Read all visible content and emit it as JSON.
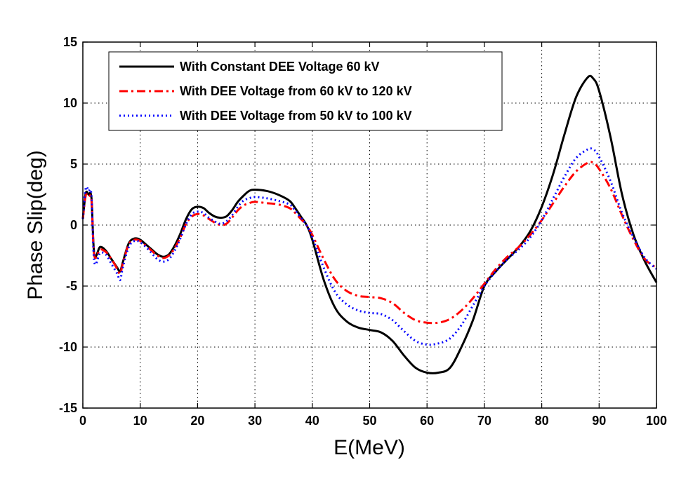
{
  "chart_data": {
    "type": "line",
    "title": "",
    "xlabel": "E(MeV)",
    "ylabel": "Phase Slip(deg)",
    "xlim": [
      0,
      100
    ],
    "ylim": [
      -15,
      15
    ],
    "xticks": [
      0,
      10,
      20,
      30,
      40,
      50,
      60,
      70,
      80,
      90,
      100
    ],
    "yticks": [
      -15,
      -10,
      -5,
      0,
      5,
      10,
      15
    ],
    "grid": true,
    "legend_position": "top-left",
    "series": [
      {
        "name": "With Constant DEE Voltage 60 kV",
        "color": "#000000",
        "style": "solid",
        "x": [
          0,
          0.5,
          1,
          1.5,
          2,
          3,
          4,
          5,
          6,
          6.5,
          7,
          8,
          9,
          10,
          11,
          12,
          13,
          14,
          15,
          16,
          17,
          18,
          19,
          20,
          21,
          22,
          23,
          24,
          25,
          26,
          27,
          28,
          29,
          30,
          32,
          34,
          36,
          37,
          38,
          39,
          40,
          42,
          44,
          46,
          48,
          50,
          52,
          54,
          56,
          58,
          60,
          62,
          64,
          66,
          68,
          70,
          72,
          74,
          76,
          78,
          80,
          82,
          84,
          86,
          88,
          89,
          90,
          92,
          94,
          96,
          98,
          100
        ],
        "y": [
          0.5,
          2.6,
          2.5,
          2.2,
          -2.4,
          -1.8,
          -2.1,
          -2.8,
          -3.5,
          -3.8,
          -3.0,
          -1.5,
          -1.1,
          -1.2,
          -1.6,
          -2.0,
          -2.4,
          -2.6,
          -2.4,
          -1.7,
          -0.7,
          0.5,
          1.3,
          1.5,
          1.4,
          1.0,
          0.7,
          0.6,
          0.7,
          1.2,
          1.9,
          2.4,
          2.8,
          2.9,
          2.8,
          2.5,
          2.0,
          1.4,
          0.7,
          0.0,
          -1.2,
          -4.5,
          -6.8,
          -7.9,
          -8.4,
          -8.6,
          -8.8,
          -9.5,
          -10.7,
          -11.7,
          -12.1,
          -12.1,
          -11.7,
          -10.0,
          -7.8,
          -5.0,
          -3.8,
          -2.8,
          -1.8,
          -0.5,
          1.5,
          4.2,
          7.5,
          10.5,
          12.1,
          12.0,
          11.0,
          7.2,
          2.5,
          -0.8,
          -3.0,
          -4.7
        ]
      },
      {
        "name": "With DEE Voltage from 60 kV to 120 kV",
        "color": "#ff0000",
        "style": "dashdot",
        "x": [
          0,
          0.5,
          1,
          1.5,
          2,
          3,
          4,
          5,
          6,
          6.5,
          7,
          8,
          9,
          10,
          11,
          12,
          13,
          14,
          15,
          16,
          17,
          18,
          19,
          20,
          21,
          22,
          23,
          24,
          25,
          26,
          27,
          28,
          29,
          30,
          32,
          34,
          36,
          37,
          38,
          39,
          40,
          42,
          44,
          46,
          48,
          50,
          52,
          54,
          56,
          58,
          60,
          62,
          64,
          66,
          68,
          70,
          72,
          74,
          76,
          78,
          80,
          82,
          84,
          86,
          88,
          89,
          90,
          92,
          94,
          96,
          98,
          100
        ],
        "y": [
          0.5,
          2.4,
          2.3,
          2.0,
          -2.5,
          -2.0,
          -2.2,
          -2.8,
          -3.6,
          -4.0,
          -3.1,
          -1.6,
          -1.2,
          -1.3,
          -1.7,
          -2.1,
          -2.5,
          -2.7,
          -2.5,
          -1.9,
          -1.0,
          0.1,
          0.7,
          0.9,
          0.8,
          0.5,
          0.2,
          0.0,
          0.1,
          0.6,
          1.2,
          1.6,
          1.8,
          1.9,
          1.8,
          1.7,
          1.4,
          1.0,
          0.5,
          0.0,
          -0.8,
          -2.8,
          -4.5,
          -5.4,
          -5.8,
          -5.9,
          -6.0,
          -6.4,
          -7.2,
          -7.8,
          -8.0,
          -8.0,
          -7.7,
          -7.0,
          -6.0,
          -4.8,
          -3.6,
          -2.6,
          -1.8,
          -0.8,
          0.4,
          1.8,
          3.2,
          4.4,
          5.1,
          5.1,
          4.6,
          3.0,
          0.8,
          -1.2,
          -2.8,
          -3.5
        ]
      },
      {
        "name": "With DEE Voltage from 50 kV to 100 kV",
        "color": "#0000ff",
        "style": "dotted",
        "x": [
          0,
          0.5,
          1,
          1.5,
          2,
          3,
          4,
          5,
          6,
          6.5,
          7,
          8,
          9,
          10,
          11,
          12,
          13,
          14,
          15,
          16,
          17,
          18,
          19,
          20,
          21,
          22,
          23,
          24,
          25,
          26,
          27,
          28,
          29,
          30,
          32,
          34,
          36,
          37,
          38,
          39,
          40,
          42,
          44,
          46,
          48,
          50,
          52,
          54,
          56,
          58,
          60,
          62,
          64,
          66,
          68,
          70,
          72,
          74,
          76,
          78,
          80,
          82,
          84,
          86,
          88,
          89,
          90,
          92,
          94,
          96,
          98,
          100
        ],
        "y": [
          0.5,
          3.0,
          2.8,
          2.4,
          -3.0,
          -2.3,
          -2.4,
          -3.2,
          -4.0,
          -4.5,
          -3.4,
          -1.8,
          -1.3,
          -1.4,
          -1.8,
          -2.3,
          -2.8,
          -3.0,
          -2.8,
          -2.1,
          -1.1,
          0.1,
          0.9,
          1.1,
          1.0,
          0.6,
          0.3,
          0.1,
          0.3,
          0.8,
          1.5,
          2.0,
          2.2,
          2.3,
          2.2,
          2.0,
          1.7,
          1.2,
          0.6,
          0.0,
          -1.0,
          -3.5,
          -5.5,
          -6.5,
          -7.0,
          -7.2,
          -7.3,
          -7.8,
          -8.7,
          -9.5,
          -9.8,
          -9.7,
          -9.3,
          -8.2,
          -6.6,
          -5.0,
          -3.8,
          -2.8,
          -2.0,
          -1.0,
          0.4,
          2.2,
          4.0,
          5.5,
          6.2,
          6.2,
          5.6,
          3.6,
          1.0,
          -1.0,
          -2.7,
          -3.6
        ]
      }
    ]
  }
}
